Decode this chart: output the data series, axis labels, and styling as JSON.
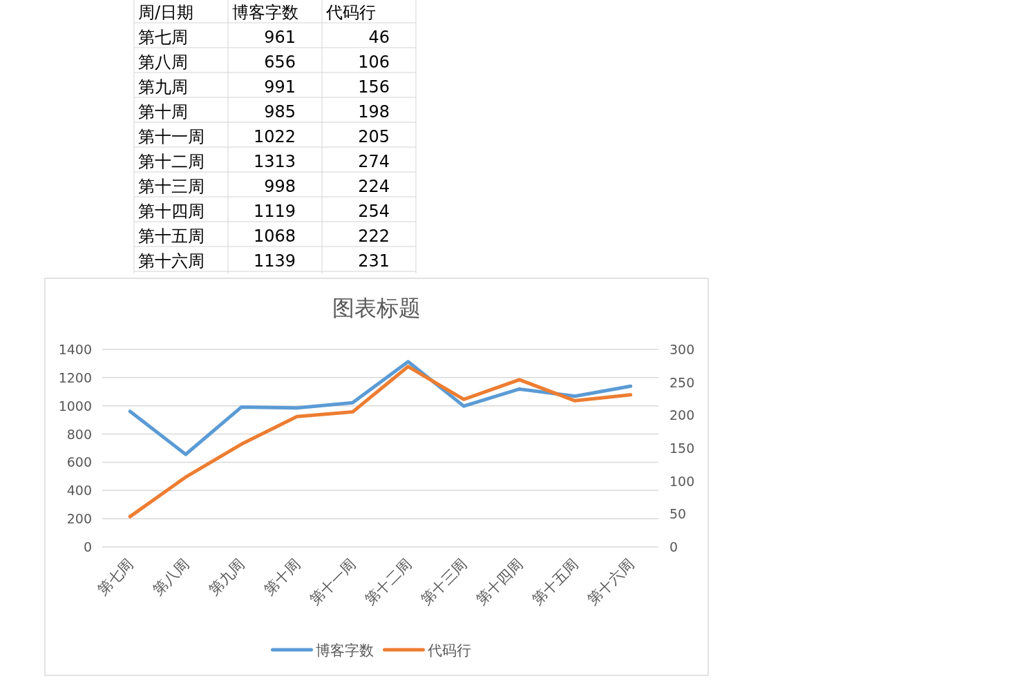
{
  "chart_data": [
    {
      "type": "heatmap",
      "ylabel": "周/日期",
      "data_labels": true,
      "categories": [
        "博客字数",
        "代码行"
      ],
      "y_categories": [
        "第七周",
        "第八周",
        "第九周",
        "第十周",
        "第十一周",
        "第十二周",
        "第十三周",
        "第十四周",
        "第十五周",
        "第十六周"
      ],
      "cells": [
        [
          961,
          46
        ],
        [
          656,
          106
        ],
        [
          991,
          156
        ],
        [
          985,
          198
        ],
        [
          1022,
          205
        ],
        [
          1313,
          274
        ],
        [
          998,
          224
        ],
        [
          1119,
          254
        ],
        [
          1068,
          222
        ],
        [
          1139,
          231
        ]
      ]
    },
    {
      "type": "line",
      "title": "图表标题",
      "categories": [
        "第七周",
        "第八周",
        "第九周",
        "第十周",
        "第十一周",
        "第十二周",
        "第十三周",
        "第十四周",
        "第十五周",
        "第十六周"
      ],
      "series": [
        {
          "name": "博客字数",
          "color": "#5b9bd5",
          "values": [
            961,
            656,
            991,
            985,
            1022,
            1313,
            998,
            1119,
            1068,
            1139
          ]
        },
        {
          "name": "代码行",
          "color": "#ed7d31",
          "axis": "y2",
          "values": [
            46,
            106,
            156,
            198,
            205,
            274,
            224,
            254,
            222,
            231
          ]
        }
      ],
      "ylim": [
        0,
        1400
      ],
      "yticks": [
        0,
        200,
        400,
        600,
        800,
        1000,
        1200,
        1400
      ],
      "y2lim": [
        0,
        300
      ],
      "y2ticks": [
        0,
        50,
        100,
        150,
        200,
        250,
        300
      ],
      "grid": "y",
      "legend": "bottom",
      "marker": "none",
      "line_style": "solid"
    }
  ]
}
